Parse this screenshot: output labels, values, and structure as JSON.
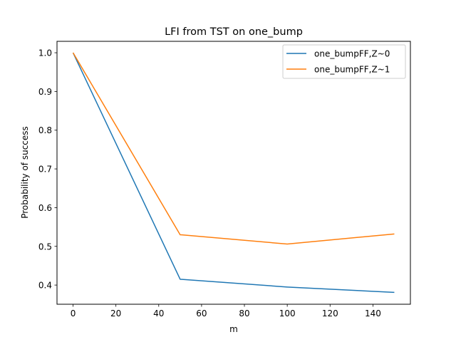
{
  "chart_data": {
    "type": "line",
    "title": "LFI from TST on one_bump",
    "xlabel": "m",
    "ylabel": "Probability of success",
    "x": [
      0,
      50,
      100,
      150
    ],
    "xlim": [
      -7.5,
      157.5
    ],
    "ylim": [
      0.3505,
      1.0295
    ],
    "xticks": [
      0,
      20,
      40,
      60,
      80,
      100,
      120,
      140
    ],
    "yticks": [
      0.4,
      0.5,
      0.6,
      0.7,
      0.8,
      0.9,
      1.0
    ],
    "ytick_labels": [
      "0.4",
      "0.5",
      "0.6",
      "0.7",
      "0.8",
      "0.9",
      "1.0"
    ],
    "grid": false,
    "legend_position": "top-right",
    "series": [
      {
        "name": "one_bumpFF,Z~0",
        "color": "#1f77b4",
        "values": [
          1.0,
          0.415,
          0.395,
          0.381
        ]
      },
      {
        "name": "one_bumpFF,Z~1",
        "color": "#ff7f0e",
        "values": [
          1.0,
          0.53,
          0.506,
          0.532
        ]
      }
    ]
  }
}
